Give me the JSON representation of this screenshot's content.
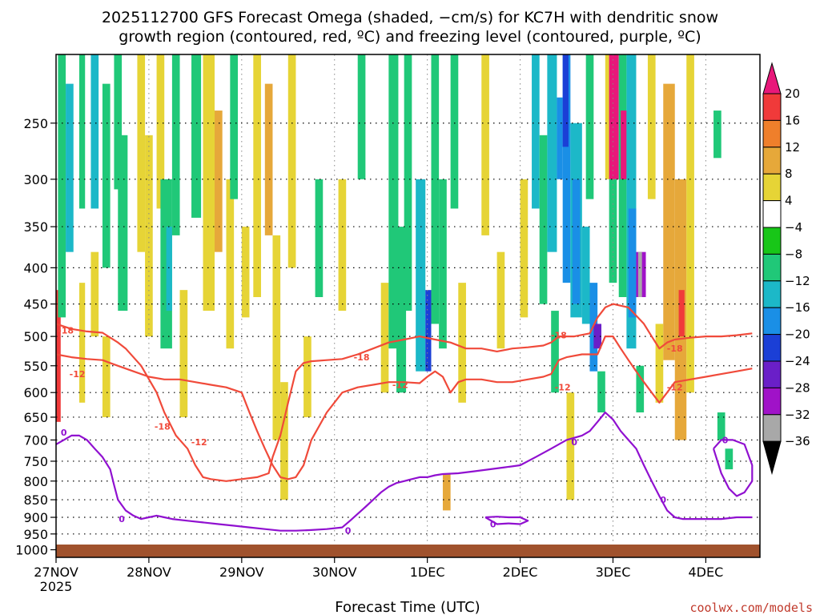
{
  "title_lines": [
    "2025112700 GFS Forecast Omega (shaded, −cm/s) for KC7H with dendritic snow",
    "growth region (contoured, red, ºC) and freezing level (contoured, purple, ºC)"
  ],
  "xlabel": "Forecast Time (UTC)",
  "credit": "coolwx.com/models",
  "chart_data": {
    "type": "heatmap",
    "x_ticks": [
      {
        "label": "27NOV",
        "sub": "2025",
        "t": 0
      },
      {
        "label": "28NOV",
        "t": 24
      },
      {
        "label": "29NOV",
        "t": 48
      },
      {
        "label": "30NOV",
        "t": 72
      },
      {
        "label": "1DEC",
        "t": 96
      },
      {
        "label": "2DEC",
        "t": 120
      },
      {
        "label": "3DEC",
        "t": 144
      },
      {
        "label": "4DEC",
        "t": 168
      }
    ],
    "xlim": [
      0,
      182
    ],
    "y_ticks": [
      250,
      300,
      350,
      400,
      450,
      500,
      550,
      600,
      650,
      700,
      750,
      800,
      850,
      900,
      950,
      1000
    ],
    "ylim_hPa": [
      200,
      1025
    ],
    "colorbar": {
      "labels": [
        "20",
        "16",
        "12",
        "8",
        "4",
        "−4",
        "−8",
        "−12",
        "−16",
        "−20",
        "−24",
        "−28",
        "−32",
        "−36"
      ],
      "colors": [
        "#e8187a",
        "#f03a3a",
        "#ef7f2b",
        "#e6a83a",
        "#e6d436",
        "#ffffff",
        "#18c618",
        "#20c878",
        "#1cb8c8",
        "#1a8fe6",
        "#1b3fd6",
        "#6a1fc8",
        "#a012c8",
        "#a8a8a8",
        "#000000"
      ]
    },
    "omega_cells": [
      {
        "t0": 0,
        "t1": 1.2,
        "p0": 430,
        "p1": 660,
        "v": 18
      },
      {
        "t0": 0.5,
        "t1": 2.5,
        "p0": 200,
        "p1": 470,
        "v": -8
      },
      {
        "t0": 2.5,
        "t1": 4.5,
        "p0": 220,
        "p1": 380,
        "v": -12
      },
      {
        "t0": 6,
        "t1": 7.5,
        "p0": 200,
        "p1": 330,
        "v": -8
      },
      {
        "t0": 6,
        "t1": 7.5,
        "p0": 420,
        "p1": 620,
        "v": 4
      },
      {
        "t0": 9,
        "t1": 11,
        "p0": 200,
        "p1": 330,
        "v": -12
      },
      {
        "t0": 9,
        "t1": 11,
        "p0": 380,
        "p1": 500,
        "v": 4
      },
      {
        "t0": 12,
        "t1": 14,
        "p0": 220,
        "p1": 400,
        "v": -8
      },
      {
        "t0": 12,
        "t1": 14,
        "p0": 500,
        "p1": 650,
        "v": 4
      },
      {
        "t0": 15,
        "t1": 17,
        "p0": 200,
        "p1": 310,
        "v": -8
      },
      {
        "t0": 16,
        "t1": 18.5,
        "p0": 260,
        "p1": 460,
        "v": -8
      },
      {
        "t0": 21,
        "t1": 23,
        "p0": 200,
        "p1": 380,
        "v": 4
      },
      {
        "t0": 23,
        "t1": 25,
        "p0": 260,
        "p1": 500,
        "v": 4
      },
      {
        "t0": 26,
        "t1": 28,
        "p0": 200,
        "p1": 330,
        "v": 4
      },
      {
        "t0": 27,
        "t1": 30,
        "p0": 300,
        "p1": 520,
        "v": -8
      },
      {
        "t0": 28.5,
        "t1": 30,
        "p0": 350,
        "p1": 460,
        "v": -12
      },
      {
        "t0": 30,
        "t1": 32,
        "p0": 200,
        "p1": 360,
        "v": -8
      },
      {
        "t0": 32,
        "t1": 34,
        "p0": 430,
        "p1": 650,
        "v": 4
      },
      {
        "t0": 35,
        "t1": 37.5,
        "p0": 200,
        "p1": 340,
        "v": -8
      },
      {
        "t0": 38,
        "t1": 41,
        "p0": 200,
        "p1": 460,
        "v": 4
      },
      {
        "t0": 41,
        "t1": 43,
        "p0": 240,
        "p1": 380,
        "v": 8
      },
      {
        "t0": 44,
        "t1": 46,
        "p0": 300,
        "p1": 520,
        "v": 4
      },
      {
        "t0": 45,
        "t1": 47,
        "p0": 200,
        "p1": 320,
        "v": -8
      },
      {
        "t0": 48,
        "t1": 50,
        "p0": 350,
        "p1": 470,
        "v": 4
      },
      {
        "t0": 51,
        "t1": 53,
        "p0": 200,
        "p1": 440,
        "v": 4
      },
      {
        "t0": 54,
        "t1": 56,
        "p0": 220,
        "p1": 360,
        "v": 8
      },
      {
        "t0": 56,
        "t1": 58,
        "p0": 360,
        "p1": 700,
        "v": 4
      },
      {
        "t0": 58,
        "t1": 60,
        "p0": 580,
        "p1": 850,
        "v": 4
      },
      {
        "t0": 60,
        "t1": 62,
        "p0": 200,
        "p1": 400,
        "v": 4
      },
      {
        "t0": 64,
        "t1": 66,
        "p0": 500,
        "p1": 650,
        "v": 4
      },
      {
        "t0": 67,
        "t1": 69,
        "p0": 300,
        "p1": 440,
        "v": -8
      },
      {
        "t0": 73,
        "t1": 75,
        "p0": 300,
        "p1": 460,
        "v": 4
      },
      {
        "t0": 78,
        "t1": 80,
        "p0": 200,
        "p1": 300,
        "v": -8
      },
      {
        "t0": 84,
        "t1": 86,
        "p0": 420,
        "p1": 600,
        "v": 4
      },
      {
        "t0": 86,
        "t1": 88.5,
        "p0": 200,
        "p1": 520,
        "v": -8
      },
      {
        "t0": 88,
        "t1": 90.5,
        "p0": 350,
        "p1": 600,
        "v": -8
      },
      {
        "t0": 90,
        "t1": 92,
        "p0": 200,
        "p1": 460,
        "v": -8
      },
      {
        "t0": 93,
        "t1": 95.5,
        "p0": 300,
        "p1": 560,
        "v": -12
      },
      {
        "t0": 95.5,
        "t1": 97,
        "p0": 430,
        "p1": 560,
        "v": -20
      },
      {
        "t0": 97,
        "t1": 99,
        "p0": 200,
        "p1": 480,
        "v": -8
      },
      {
        "t0": 99,
        "t1": 101,
        "p0": 300,
        "p1": 520,
        "v": -8
      },
      {
        "t0": 100,
        "t1": 102,
        "p0": 780,
        "p1": 880,
        "v": 8
      },
      {
        "t0": 102,
        "t1": 104,
        "p0": 200,
        "p1": 330,
        "v": -8
      },
      {
        "t0": 104,
        "t1": 106,
        "p0": 420,
        "p1": 620,
        "v": 4
      },
      {
        "t0": 110,
        "t1": 112,
        "p0": 200,
        "p1": 360,
        "v": 4
      },
      {
        "t0": 114,
        "t1": 116,
        "p0": 380,
        "p1": 520,
        "v": 4
      },
      {
        "t0": 120,
        "t1": 122,
        "p0": 300,
        "p1": 470,
        "v": 4
      },
      {
        "t0": 123,
        "t1": 125,
        "p0": 200,
        "p1": 330,
        "v": -12
      },
      {
        "t0": 125,
        "t1": 127,
        "p0": 260,
        "p1": 450,
        "v": -8
      },
      {
        "t0": 127,
        "t1": 129.5,
        "p0": 200,
        "p1": 380,
        "v": -12
      },
      {
        "t0": 128,
        "t1": 130,
        "p0": 460,
        "p1": 600,
        "v": -8
      },
      {
        "t0": 129.5,
        "t1": 131,
        "p0": 230,
        "p1": 300,
        "v": -16
      },
      {
        "t0": 131,
        "t1": 133,
        "p0": 200,
        "p1": 420,
        "v": -16
      },
      {
        "t0": 131,
        "t1": 132.5,
        "p0": 200,
        "p1": 270,
        "v": -20
      },
      {
        "t0": 132,
        "t1": 134,
        "p0": 600,
        "p1": 850,
        "v": 4
      },
      {
        "t0": 133,
        "t1": 136,
        "p0": 250,
        "p1": 470,
        "v": -12
      },
      {
        "t0": 133.5,
        "t1": 135.5,
        "p0": 300,
        "p1": 450,
        "v": -16
      },
      {
        "t0": 136,
        "t1": 138,
        "p0": 350,
        "p1": 480,
        "v": -12
      },
      {
        "t0": 137,
        "t1": 139,
        "p0": 200,
        "p1": 320,
        "v": -8
      },
      {
        "t0": 138,
        "t1": 140,
        "p0": 420,
        "p1": 560,
        "v": -16
      },
      {
        "t0": 139,
        "t1": 141,
        "p0": 480,
        "p1": 520,
        "v": -24
      },
      {
        "t0": 140,
        "t1": 142,
        "p0": 560,
        "p1": 640,
        "v": -8
      },
      {
        "t0": 142,
        "t1": 144.5,
        "p0": 200,
        "p1": 300,
        "v": 4
      },
      {
        "t0": 143,
        "t1": 145.5,
        "p0": 200,
        "p1": 300,
        "v": 20
      },
      {
        "t0": 143,
        "t1": 145,
        "p0": 300,
        "p1": 420,
        "v": -8
      },
      {
        "t0": 145.5,
        "t1": 147.5,
        "p0": 200,
        "p1": 440,
        "v": -8
      },
      {
        "t0": 146,
        "t1": 147.5,
        "p0": 240,
        "p1": 300,
        "v": 20
      },
      {
        "t0": 147.5,
        "t1": 150,
        "p0": 200,
        "p1": 520,
        "v": -12
      },
      {
        "t0": 148,
        "t1": 150,
        "p0": 330,
        "p1": 470,
        "v": -16
      },
      {
        "t0": 150,
        "t1": 152.5,
        "p0": 380,
        "p1": 440,
        "v": -28
      },
      {
        "t0": 150.5,
        "t1": 151.5,
        "p0": 380,
        "p1": 440,
        "v": -32
      },
      {
        "t0": 150,
        "t1": 152,
        "p0": 550,
        "p1": 640,
        "v": -8
      },
      {
        "t0": 153,
        "t1": 155,
        "p0": 200,
        "p1": 320,
        "v": 4
      },
      {
        "t0": 155,
        "t1": 157,
        "p0": 480,
        "p1": 620,
        "v": 4
      },
      {
        "t0": 157,
        "t1": 160,
        "p0": 220,
        "p1": 540,
        "v": 8
      },
      {
        "t0": 160,
        "t1": 163,
        "p0": 300,
        "p1": 700,
        "v": 8
      },
      {
        "t0": 161,
        "t1": 162.5,
        "p0": 430,
        "p1": 500,
        "v": 16
      },
      {
        "t0": 163,
        "t1": 165,
        "p0": 200,
        "p1": 600,
        "v": 4
      },
      {
        "t0": 170,
        "t1": 172,
        "p0": 240,
        "p1": 280,
        "v": -8
      },
      {
        "t0": 171,
        "t1": 173,
        "p0": 640,
        "p1": 700,
        "v": -8
      },
      {
        "t0": 173,
        "t1": 175,
        "p0": 720,
        "p1": 770,
        "v": -8
      }
    ],
    "contours": [
      {
        "name": "dgz-minus18",
        "level": "-18",
        "color": "#f04a3a",
        "t": [
          0,
          4,
          8,
          12,
          16,
          18,
          22,
          26,
          28,
          31,
          34,
          36,
          38,
          40,
          44,
          48,
          52,
          55,
          56,
          58,
          60,
          62,
          64,
          66,
          70,
          74,
          78,
          82,
          86,
          90,
          94,
          98,
          102,
          106,
          110,
          114,
          118,
          122,
          126,
          128,
          130,
          134,
          138,
          140,
          142,
          144,
          148,
          152,
          154,
          156,
          158,
          160,
          164,
          168,
          172,
          176,
          180
        ],
        "p": [
          480,
          488,
          492,
          494,
          510,
          520,
          550,
          600,
          640,
          690,
          720,
          760,
          790,
          795,
          800,
          795,
          790,
          780,
          740,
          690,
          620,
          560,
          545,
          542,
          540,
          538,
          530,
          520,
          510,
          505,
          500,
          505,
          510,
          520,
          520,
          525,
          520,
          518,
          515,
          510,
          500,
          500,
          495,
          470,
          455,
          450,
          455,
          480,
          500,
          520,
          510,
          505,
          502,
          500,
          500,
          498,
          495
        ]
      },
      {
        "name": "dgz-minus12",
        "level": "-12",
        "color": "#f04a3a",
        "t": [
          0,
          4,
          8,
          12,
          14,
          16,
          20,
          24,
          28,
          32,
          36,
          40,
          44,
          48,
          50,
          52,
          54,
          56,
          58,
          60,
          62,
          64,
          66,
          70,
          74,
          78,
          82,
          86,
          90,
          94,
          96,
          98,
          100,
          102,
          104,
          106,
          110,
          114,
          118,
          122,
          126,
          128,
          130,
          132,
          136,
          140,
          142,
          144,
          146,
          148,
          150,
          152,
          154,
          156,
          158,
          160,
          164,
          168,
          172,
          176,
          180
        ],
        "p": [
          530,
          535,
          538,
          540,
          545,
          550,
          560,
          570,
          575,
          575,
          580,
          585,
          590,
          600,
          640,
          680,
          720,
          760,
          790,
          795,
          790,
          760,
          700,
          640,
          600,
          590,
          585,
          580,
          580,
          582,
          570,
          560,
          570,
          600,
          580,
          575,
          575,
          580,
          580,
          575,
          570,
          565,
          540,
          535,
          530,
          530,
          500,
          500,
          520,
          540,
          560,
          580,
          600,
          620,
          600,
          580,
          575,
          570,
          565,
          560,
          555
        ]
      },
      {
        "name": "freezing-level",
        "level": "0",
        "color": "#9010d0",
        "t": [
          0,
          2,
          4,
          6,
          8,
          10,
          12,
          14,
          15,
          16,
          18,
          20,
          22,
          24,
          26,
          28,
          30,
          34,
          38,
          42,
          46,
          50,
          54,
          58,
          62,
          66,
          70,
          74,
          76,
          78,
          80,
          82,
          84,
          86,
          88,
          90,
          92,
          94,
          96,
          98,
          100,
          104,
          108,
          112,
          116,
          120,
          124,
          128,
          132,
          136,
          138,
          140,
          142,
          144,
          146,
          148,
          150,
          152,
          154,
          156,
          158,
          160,
          162,
          164,
          168,
          172,
          176,
          180
        ],
        "p": [
          710,
          700,
          690,
          690,
          700,
          720,
          740,
          770,
          810,
          850,
          880,
          895,
          905,
          900,
          895,
          900,
          905,
          910,
          915,
          920,
          925,
          930,
          935,
          940,
          940,
          938,
          935,
          930,
          910,
          890,
          870,
          850,
          830,
          815,
          805,
          800,
          795,
          790,
          790,
          785,
          782,
          780,
          775,
          770,
          765,
          760,
          740,
          720,
          700,
          690,
          680,
          660,
          640,
          655,
          680,
          700,
          720,
          760,
          800,
          840,
          880,
          900,
          905,
          905,
          905,
          905,
          900,
          900
        ]
      },
      {
        "name": "freezing-level-cell",
        "level": "0",
        "color": "#9010d0",
        "t": [
          111,
          114,
          117,
          120,
          122,
          120,
          117,
          114,
          111
        ],
        "p": [
          900,
          898,
          900,
          900,
          910,
          920,
          918,
          920,
          900
        ]
      },
      {
        "name": "freezing-level-east",
        "level": "0",
        "color": "#9010d0",
        "t": [
          170,
          172,
          175,
          178,
          180,
          180,
          178,
          176,
          174,
          172,
          170
        ],
        "p": [
          720,
          700,
          700,
          710,
          760,
          800,
          830,
          840,
          820,
          780,
          720
        ]
      }
    ],
    "contour_labels": [
      {
        "text": "-18",
        "t": 2.5,
        "p": 490,
        "color": "#f04a3a"
      },
      {
        "text": "-12",
        "t": 5.5,
        "p": 565,
        "color": "#f04a3a"
      },
      {
        "text": "-18",
        "t": 27.5,
        "p": 670,
        "color": "#f04a3a"
      },
      {
        "text": "-12",
        "t": 37,
        "p": 705,
        "color": "#f04a3a"
      },
      {
        "text": "-18",
        "t": 79,
        "p": 535,
        "color": "#f04a3a"
      },
      {
        "text": "-12",
        "t": 89,
        "p": 585,
        "color": "#f04a3a"
      },
      {
        "text": "-18",
        "t": 130,
        "p": 498,
        "color": "#f04a3a"
      },
      {
        "text": "-12",
        "t": 131,
        "p": 590,
        "color": "#f04a3a"
      },
      {
        "text": "-18",
        "t": 160,
        "p": 520,
        "color": "#f04a3a"
      },
      {
        "text": "-12",
        "t": 160,
        "p": 590,
        "color": "#f04a3a"
      },
      {
        "text": "0",
        "t": 2,
        "p": 683,
        "color": "#9010d0"
      },
      {
        "text": "0",
        "t": 17,
        "p": 905,
        "color": "#9010d0"
      },
      {
        "text": "0",
        "t": 75.5,
        "p": 940,
        "color": "#9010d0"
      },
      {
        "text": "0",
        "t": 113,
        "p": 920,
        "color": "#9010d0"
      },
      {
        "text": "0",
        "t": 134,
        "p": 705,
        "color": "#9010d0"
      },
      {
        "text": "0",
        "t": 157,
        "p": 850,
        "color": "#9010d0"
      },
      {
        "text": "0",
        "t": 173,
        "p": 700,
        "color": "#9010d0"
      }
    ]
  }
}
